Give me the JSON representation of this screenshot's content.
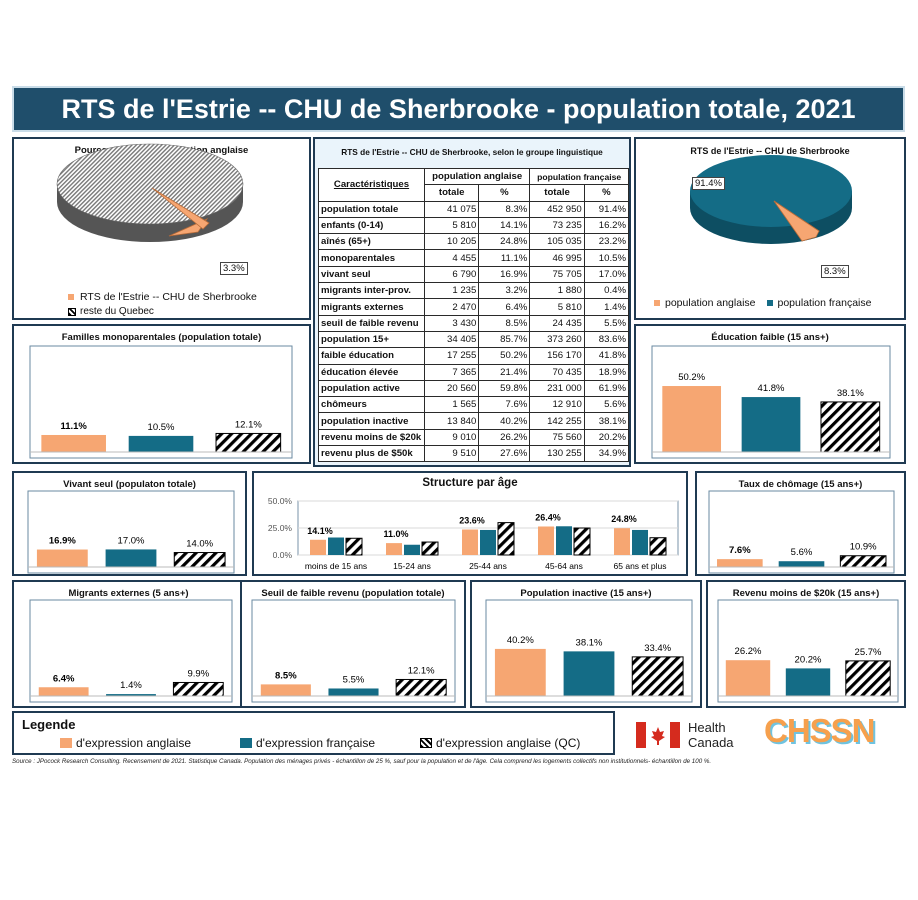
{
  "title": "RTS de l'Estrie -- CHU de Sherbrooke - population totale, 2021",
  "colors": {
    "english": "#f6a672",
    "french": "#146c86",
    "quebec": "hatch-black",
    "banner": "#1f4e6b"
  },
  "pie_left": {
    "title": "Pourcentage  de la population  anglaise",
    "legend": [
      "RTS de l'Estrie -- CHU de Sherbrooke",
      "reste du Quebec"
    ],
    "label": "3.3%"
  },
  "pie_right": {
    "title": "RTS de l'Estrie -- CHU de Sherbrooke",
    "legend": [
      "population anglaise",
      "population française"
    ],
    "label_fr": "91.4%",
    "label_en": "8.3%"
  },
  "table": {
    "title": "RTS de l'Estrie -- CHU de Sherbrooke, selon le groupe linguistique",
    "col_char": "Caractéristiques",
    "col_en": "population anglaise",
    "col_fr": "population française",
    "sub_total": "totale",
    "sub_pct": "%",
    "rows": [
      {
        "label": "population totale",
        "en_total": "41 075",
        "en_pct": "8.3%",
        "fr_total": "452 950",
        "fr_pct": "91.4%"
      },
      {
        "label": "enfants (0-14)",
        "en_total": "5 810",
        "en_pct": "14.1%",
        "fr_total": "73 235",
        "fr_pct": "16.2%"
      },
      {
        "label": "aînés (65+)",
        "en_total": "10 205",
        "en_pct": "24.8%",
        "fr_total": "105 035",
        "fr_pct": "23.2%"
      },
      {
        "label": "monoparentales",
        "en_total": "4 455",
        "en_pct": "11.1%",
        "fr_total": "46 995",
        "fr_pct": "10.5%"
      },
      {
        "label": "vivant seul",
        "en_total": "6 790",
        "en_pct": "16.9%",
        "fr_total": "75 705",
        "fr_pct": "17.0%"
      },
      {
        "label": "migrants inter-prov.",
        "en_total": "1 235",
        "en_pct": "3.2%",
        "fr_total": "1 880",
        "fr_pct": "0.4%"
      },
      {
        "label": "migrants externes",
        "en_total": "2 470",
        "en_pct": "6.4%",
        "fr_total": "5 810",
        "fr_pct": "1.4%"
      },
      {
        "label": "seuil de faible revenu",
        "en_total": "3 430",
        "en_pct": "8.5%",
        "fr_total": "24 435",
        "fr_pct": "5.5%"
      },
      {
        "label": "population 15+",
        "en_total": "34 405",
        "en_pct": "85.7%",
        "fr_total": "373 260",
        "fr_pct": "83.6%"
      },
      {
        "label": "faible éducation",
        "en_total": "17 255",
        "en_pct": "50.2%",
        "fr_total": "156 170",
        "fr_pct": "41.8%"
      },
      {
        "label": "éducation élevée",
        "en_total": "7 365",
        "en_pct": "21.4%",
        "fr_total": "70 435",
        "fr_pct": "18.9%"
      },
      {
        "label": "population active",
        "en_total": "20 560",
        "en_pct": "59.8%",
        "fr_total": "231 000",
        "fr_pct": "61.9%"
      },
      {
        "label": "chômeurs",
        "en_total": "1 565",
        "en_pct": "7.6%",
        "fr_total": "12 910",
        "fr_pct": "5.6%"
      },
      {
        "label": "population inactive",
        "en_total": "13 840",
        "en_pct": "40.2%",
        "fr_total": "142 255",
        "fr_pct": "38.1%"
      },
      {
        "label": "revenu moins de $20k",
        "en_total": "9 010",
        "en_pct": "26.2%",
        "fr_total": "75 560",
        "fr_pct": "20.2%"
      },
      {
        "label": "revenu plus de $50k",
        "en_total": "9 510",
        "en_pct": "27.6%",
        "fr_total": "130 255",
        "fr_pct": "34.9%"
      }
    ]
  },
  "legend": {
    "title": "Legende",
    "items": [
      "d'expression anglaise",
      "d'expression française",
      "d'expression anglaise (QC)"
    ]
  },
  "logos": {
    "health_line1": "Health",
    "health_line2": "Canada",
    "chssn": "CHSSN"
  },
  "source": "Source : JPocock Research Consulting. Recensement de 2021. Statistique Canada. Population des ménages privés - échantillon de 25 %, sauf pour la population et de l'âge. Cela comprend les logements collectifs non institutionnels- échantillon de 100 %.",
  "chart_data": [
    {
      "id": "pie_anglaise",
      "type": "pie",
      "title": "Pourcentage  de la population  anglaise",
      "categories": [
        "RTS de l'Estrie -- CHU de Sherbrooke",
        "reste du Quebec"
      ],
      "values": [
        3.3,
        96.7
      ],
      "value_labels": [
        "3.3%",
        ""
      ]
    },
    {
      "id": "pie_rts",
      "type": "pie",
      "title": "RTS de l'Estrie -- CHU de Sherbrooke",
      "categories": [
        "population anglaise",
        "population française"
      ],
      "values": [
        8.3,
        91.4
      ],
      "value_labels": [
        "8.3%",
        "91.4%"
      ]
    },
    {
      "id": "mono",
      "type": "bar",
      "title": "Familles monoparentales  (population  totale)",
      "values": [
        11.1,
        10.5,
        12.1
      ],
      "labels": [
        "11.1%",
        "10.5%",
        "12.1%"
      ],
      "ymax": 60
    },
    {
      "id": "edu",
      "type": "bar",
      "title": "Éducation faible (15 ans+)",
      "values": [
        50.2,
        41.8,
        38.1
      ],
      "labels": [
        "50.2%",
        "41.8%",
        "38.1%"
      ],
      "ymax": 70
    },
    {
      "id": "seul",
      "type": "bar",
      "title": "Vivant seul (populaton totale)",
      "values": [
        16.9,
        17.0,
        14.0
      ],
      "labels": [
        "16.9%",
        "17.0%",
        "14.0%"
      ],
      "ymax": 60
    },
    {
      "id": "age",
      "type": "bar",
      "title": "Structure par âge",
      "categories": [
        "moins de 15 ans",
        "15-24 ans",
        "25-44 ans",
        "45-64 ans",
        "65 ans et plus"
      ],
      "ylim": [
        0,
        50
      ],
      "yticks": [
        "0.0%",
        "25.0%",
        "50.0%"
      ],
      "series": [
        {
          "values": [
            14.1,
            11.0,
            23.6,
            26.4,
            24.8
          ],
          "labels": [
            "14.1%",
            "11.0%",
            "23.6%",
            "26.4%",
            "24.8%"
          ]
        },
        {
          "values": [
            16.2,
            9.5,
            23.2,
            26.6,
            23.2
          ]
        },
        {
          "values": [
            15.5,
            12.0,
            30.0,
            25.0,
            16.0
          ]
        }
      ]
    },
    {
      "id": "chom",
      "type": "bar",
      "title": "Taux de chômage (15 ans+)",
      "values": [
        7.6,
        5.6,
        10.9
      ],
      "labels": [
        "7.6%",
        "5.6%",
        "10.9%"
      ],
      "ymax": 60
    },
    {
      "id": "migr",
      "type": "bar",
      "title": "Migrants externes (5 ans+)",
      "values": [
        6.4,
        1.4,
        9.9
      ],
      "labels": [
        "6.4%",
        "1.4%",
        "9.9%"
      ],
      "ymax": 60
    },
    {
      "id": "fr",
      "type": "bar",
      "title": "Seuil de faible revenu (population totale)",
      "values": [
        8.5,
        5.5,
        12.1
      ],
      "labels": [
        "8.5%",
        "5.5%",
        "12.1%"
      ],
      "ymax": 60
    },
    {
      "id": "inact",
      "type": "bar",
      "title": "Population  inactive (15 ans+)",
      "values": [
        40.2,
        38.1,
        33.4
      ],
      "labels": [
        "40.2%",
        "38.1%",
        "33.4%"
      ],
      "ymax": 70
    },
    {
      "id": "rev",
      "type": "bar",
      "title": "Revenu moins de $20k (15 ans+)",
      "values": [
        26.2,
        20.2,
        25.7
      ],
      "labels": [
        "26.2%",
        "20.2%",
        "25.7%"
      ],
      "ymax": 60
    }
  ]
}
